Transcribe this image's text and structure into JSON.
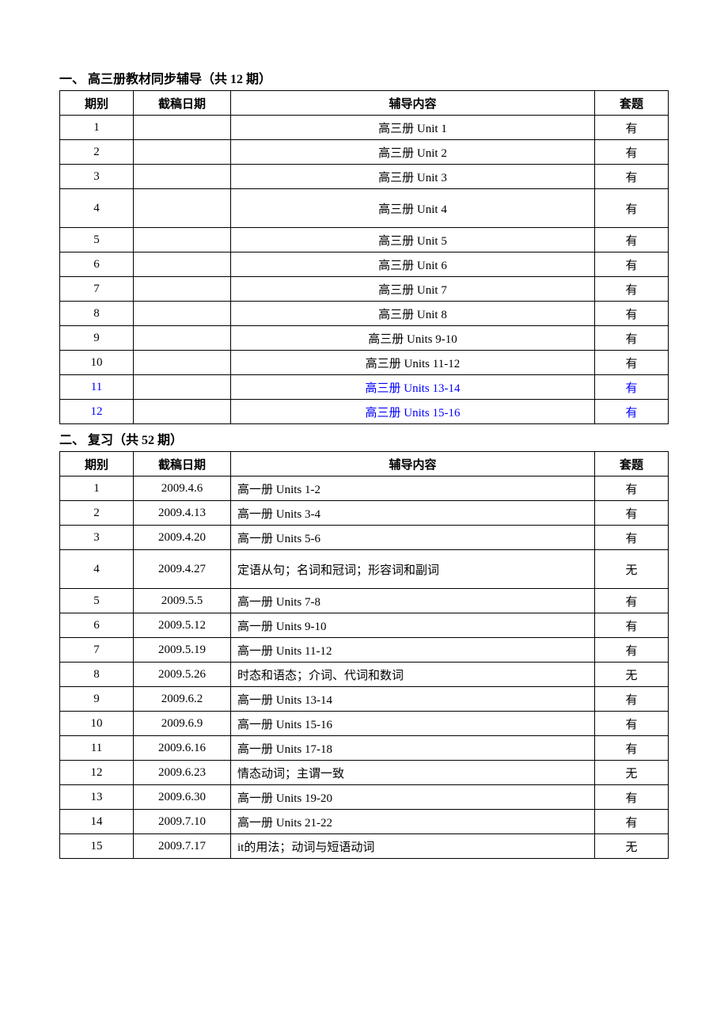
{
  "section1": {
    "title": "一、 高三册教材同步辅导（共 12 期）",
    "headers": [
      "期别",
      "截稿日期",
      "辅导内容",
      "套题"
    ],
    "rows": [
      {
        "num": "1",
        "date": "",
        "content": "高三册  Unit 1",
        "set": "有",
        "blue": false,
        "tall": false
      },
      {
        "num": "2",
        "date": "",
        "content": "高三册  Unit 2",
        "set": "有",
        "blue": false,
        "tall": false
      },
      {
        "num": "3",
        "date": "",
        "content": "高三册  Unit 3",
        "set": "有",
        "blue": false,
        "tall": false
      },
      {
        "num": "4",
        "date": "",
        "content": "高三册  Unit 4",
        "set": "有",
        "blue": false,
        "tall": true
      },
      {
        "num": "5",
        "date": "",
        "content": "高三册  Unit 5",
        "set": "有",
        "blue": false,
        "tall": false
      },
      {
        "num": "6",
        "date": "",
        "content": "高三册  Unit 6",
        "set": "有",
        "blue": false,
        "tall": false
      },
      {
        "num": "7",
        "date": "",
        "content": "高三册  Unit 7",
        "set": "有",
        "blue": false,
        "tall": false
      },
      {
        "num": "8",
        "date": "",
        "content": "高三册  Unit 8",
        "set": "有",
        "blue": false,
        "tall": false
      },
      {
        "num": "9",
        "date": "",
        "content": "高三册  Units 9-10",
        "set": "有",
        "blue": false,
        "tall": false
      },
      {
        "num": "10",
        "date": "",
        "content": "高三册  Units 11-12",
        "set": "有",
        "blue": false,
        "tall": false
      },
      {
        "num": "11",
        "date": "",
        "content": "高三册  Units 13-14",
        "set": "有",
        "blue": true,
        "tall": false
      },
      {
        "num": "12",
        "date": "",
        "content": "高三册  Units 15-16",
        "set": "有",
        "blue": true,
        "tall": false
      }
    ]
  },
  "section2": {
    "title": "二、 复习（共 52 期）",
    "headers": [
      "期别",
      "截稿日期",
      "辅导内容",
      "套题"
    ],
    "rows": [
      {
        "num": "1",
        "date": "2009.4.6",
        "content": "高一册  Units 1-2",
        "set": "有",
        "tall": false
      },
      {
        "num": "2",
        "date": "2009.4.13",
        "content": "高一册  Units 3-4",
        "set": "有",
        "tall": false
      },
      {
        "num": "3",
        "date": "2009.4.20",
        "content": "高一册  Units 5-6",
        "set": "有",
        "tall": false
      },
      {
        "num": "4",
        "date": "2009.4.27",
        "content": "定语从句；名词和冠词；形容词和副词",
        "set": "无",
        "tall": true
      },
      {
        "num": "5",
        "date": "2009.5.5",
        "content": "高一册  Units 7-8",
        "set": "有",
        "tall": false
      },
      {
        "num": "6",
        "date": "2009.5.12",
        "content": "高一册  Units 9-10",
        "set": "有",
        "tall": false
      },
      {
        "num": "7",
        "date": "2009.5.19",
        "content": "高一册  Units 11-12",
        "set": "有",
        "tall": false
      },
      {
        "num": "8",
        "date": "2009.5.26",
        "content": "时态和语态；介词、代词和数词",
        "set": "无",
        "tall": false
      },
      {
        "num": "9",
        "date": "2009.6.2",
        "content": "高一册  Units 13-14",
        "set": "有",
        "tall": false
      },
      {
        "num": "10",
        "date": "2009.6.9",
        "content": "高一册  Units 15-16",
        "set": "有",
        "tall": false
      },
      {
        "num": "11",
        "date": "2009.6.16",
        "content": "高一册  Units 17-18",
        "set": "有",
        "tall": false
      },
      {
        "num": "12",
        "date": "2009.6.23",
        "content": "情态动词；主谓一致",
        "set": "无",
        "tall": false
      },
      {
        "num": "13",
        "date": "2009.6.30",
        "content": "高一册  Units 19-20",
        "set": "有",
        "tall": false
      },
      {
        "num": "14",
        "date": "2009.7.10",
        "content": "高一册  Units 21-22",
        "set": "有",
        "tall": false
      },
      {
        "num": "15",
        "date": "2009.7.17",
        "content": "it的用法；动词与短语动词",
        "set": "无",
        "tall": false
      }
    ]
  }
}
